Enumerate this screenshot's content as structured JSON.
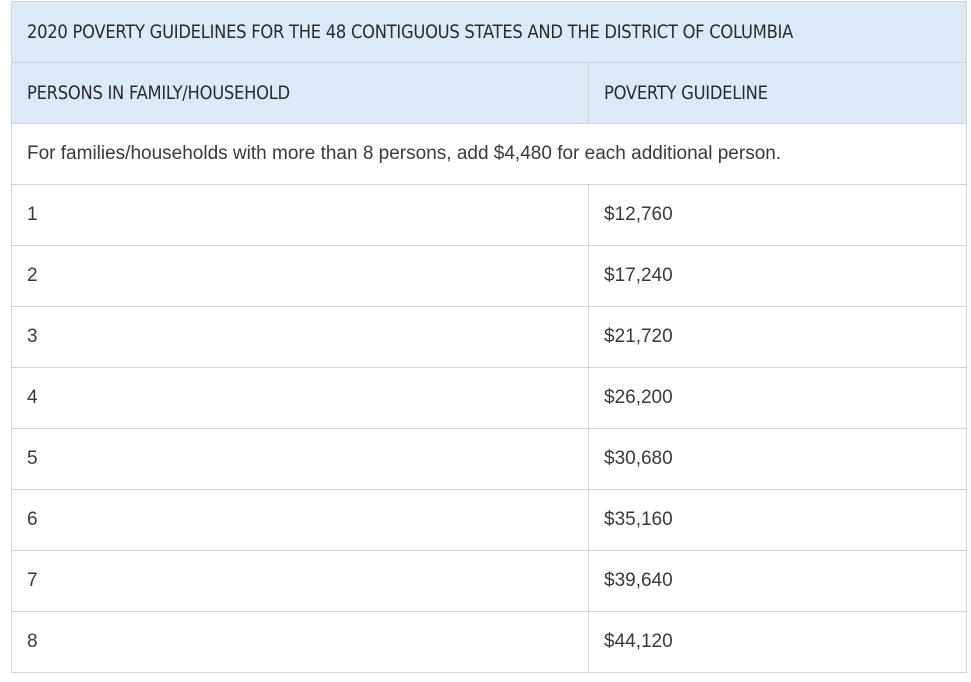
{
  "table": {
    "title": "2020 POVERTY GUIDELINES FOR THE 48 CONTIGUOUS STATES AND THE DISTRICT OF COLUMBIA",
    "headers": {
      "persons": "PERSONS IN FAMILY/HOUSEHOLD",
      "guideline": "POVERTY GUIDELINE"
    },
    "note": "For families/households with more than 8 persons, add $4,480 for each additional person.",
    "rows": [
      {
        "persons": "1",
        "guideline": "$12,760"
      },
      {
        "persons": "2",
        "guideline": "$17,240"
      },
      {
        "persons": "3",
        "guideline": "$21,720"
      },
      {
        "persons": "4",
        "guideline": "$26,200"
      },
      {
        "persons": "5",
        "guideline": "$30,680"
      },
      {
        "persons": "6",
        "guideline": "$35,160"
      },
      {
        "persons": "7",
        "guideline": "$39,640"
      },
      {
        "persons": "8",
        "guideline": "$44,120"
      }
    ]
  },
  "colors": {
    "header_background": "#dce9f7",
    "border": "#d3d3d3",
    "text": "#333333"
  }
}
